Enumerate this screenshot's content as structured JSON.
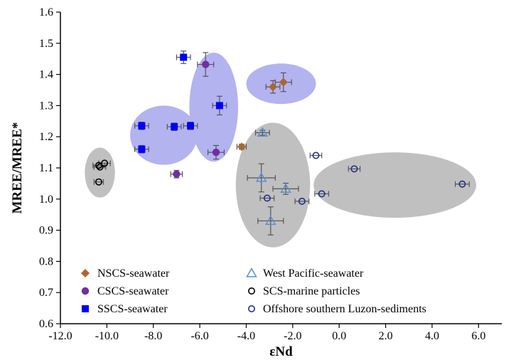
{
  "chart_data": {
    "type": "scatter",
    "title": "",
    "xlabel": "εNd",
    "ylabel": "MREE/MREE*",
    "xlim": [
      -12.0,
      7.0
    ],
    "ylim": [
      0.6,
      1.6
    ],
    "grid": false,
    "legend_placement": "bottom",
    "x_ticks": [
      -12.0,
      -10.0,
      -8.0,
      -6.0,
      -4.0,
      -2.0,
      0.0,
      2.0,
      4.0,
      6.0
    ],
    "x_tick_labels": [
      "-12.0",
      "-10.0",
      "-8.0",
      "-6.0",
      "-4.0",
      "-2.0",
      "0.0",
      "2.0",
      "4.0",
      "6.0"
    ],
    "y_ticks": [
      0.6,
      0.7,
      0.8,
      0.9,
      1.0,
      1.1,
      1.2,
      1.3,
      1.4,
      1.5,
      1.6
    ],
    "y_tick_labels": [
      "0.6",
      "0.7",
      "0.8",
      "0.9",
      "1.0",
      "1.1",
      "1.2",
      "1.3",
      "1.4",
      "1.5",
      "1.6"
    ],
    "groups": [
      {
        "cx": -10.3,
        "cy": 1.085,
        "rx": 0.65,
        "ry": 0.08,
        "color": "#c0c0c0"
      },
      {
        "cx": -7.55,
        "cy": 1.205,
        "rx": 1.45,
        "ry": 0.095,
        "color": "#b3b3f0"
      },
      {
        "cx": -5.4,
        "cy": 1.295,
        "rx": 1.05,
        "ry": 0.175,
        "color": "#b3b3f0"
      },
      {
        "cx": -2.5,
        "cy": 1.37,
        "rx": 1.5,
        "ry": 0.065,
        "color": "#b3b3f0"
      },
      {
        "cx": -2.85,
        "cy": 1.045,
        "rx": 1.6,
        "ry": 0.2,
        "color": "#c0c0c0"
      },
      {
        "cx": 2.4,
        "cy": 1.045,
        "rx": 3.5,
        "ry": 0.105,
        "color": "#c0c0c0"
      }
    ],
    "series": [
      {
        "name": "NSCS-seawater",
        "marker": "diamond",
        "color": "#a8682e",
        "points": [
          {
            "x": -2.4,
            "y": 1.375,
            "xerr": 0.35,
            "yerr": 0.03
          },
          {
            "x": -2.85,
            "y": 1.36,
            "xerr": 0.3,
            "yerr": 0.02
          },
          {
            "x": -4.2,
            "y": 1.168,
            "xerr": 0.2,
            "yerr": 0.008
          }
        ]
      },
      {
        "name": "CSCS-seawater",
        "marker": "circle",
        "color": "#7030a0",
        "points": [
          {
            "x": -5.75,
            "y": 1.432,
            "xerr": 0.35,
            "yerr": 0.038
          },
          {
            "x": -5.3,
            "y": 1.15,
            "xerr": 0.35,
            "yerr": 0.022
          },
          {
            "x": -7.0,
            "y": 1.08,
            "xerr": 0.25,
            "yerr": 0.012
          }
        ]
      },
      {
        "name": "SSCS-seawater",
        "marker": "square",
        "color": "#0000ff",
        "points": [
          {
            "x": -6.7,
            "y": 1.455,
            "xerr": 0.3,
            "yerr": 0.02
          },
          {
            "x": -5.15,
            "y": 1.3,
            "xerr": 0.3,
            "yerr": 0.03
          },
          {
            "x": -8.5,
            "y": 1.235,
            "xerr": 0.3,
            "yerr": 0.012
          },
          {
            "x": -7.1,
            "y": 1.232,
            "xerr": 0.3,
            "yerr": 0.012
          },
          {
            "x": -6.4,
            "y": 1.235,
            "xerr": 0.3,
            "yerr": 0.012
          },
          {
            "x": -8.5,
            "y": 1.16,
            "xerr": 0.3,
            "yerr": 0.012
          }
        ]
      },
      {
        "name": "West Pacific-seawater",
        "marker": "triangle-open",
        "color": "#5b8fd6",
        "points": [
          {
            "x": -3.3,
            "y": 1.213,
            "xerr": 0.3,
            "yerr": 0.008
          },
          {
            "x": -3.35,
            "y": 1.068,
            "xerr": 0.6,
            "yerr": 0.045
          },
          {
            "x": -2.3,
            "y": 1.033,
            "xerr": 0.55,
            "yerr": 0.018
          },
          {
            "x": -2.95,
            "y": 0.93,
            "xerr": 0.55,
            "yerr": 0.045
          }
        ]
      },
      {
        "name": "SCS-marine particles",
        "marker": "circle-open",
        "color": "#000000",
        "points": [
          {
            "x": -10.1,
            "y": 1.115,
            "xerr": 0.25,
            "yerr": 0.0
          },
          {
            "x": -10.3,
            "y": 1.103,
            "xerr": 0.25,
            "yerr": 0.0
          },
          {
            "x": -10.35,
            "y": 1.108,
            "xerr": 0.25,
            "yerr": 0.0
          },
          {
            "x": -10.35,
            "y": 1.055,
            "xerr": 0.2,
            "yerr": 0.0
          }
        ]
      },
      {
        "name": "Offshore southern Luzon-sediments",
        "marker": "circle-open",
        "color": "#1f2f8f",
        "points": [
          {
            "x": -1.0,
            "y": 1.14,
            "xerr": 0.25,
            "yerr": 0.0
          },
          {
            "x": 0.65,
            "y": 1.097,
            "xerr": 0.25,
            "yerr": 0.0
          },
          {
            "x": 5.3,
            "y": 1.048,
            "xerr": 0.3,
            "yerr": 0.0
          },
          {
            "x": -0.75,
            "y": 1.017,
            "xerr": 0.3,
            "yerr": 0.0
          },
          {
            "x": -3.1,
            "y": 1.003,
            "xerr": 0.3,
            "yerr": 0.0
          },
          {
            "x": -1.6,
            "y": 0.993,
            "xerr": 0.3,
            "yerr": 0.0
          }
        ]
      }
    ],
    "legend": [
      {
        "label": "NSCS-seawater",
        "marker": "diamond",
        "color": "#a8682e"
      },
      {
        "label": "CSCS-seawater",
        "marker": "circle",
        "color": "#7030a0"
      },
      {
        "label": "SSCS-seawater",
        "marker": "square",
        "color": "#0000ff"
      },
      {
        "label": "West Pacific-seawater",
        "marker": "triangle-open",
        "color": "#5b8fd6"
      },
      {
        "label": "SCS-marine particles",
        "marker": "circle-open",
        "color": "#000000"
      },
      {
        "label": "Offshore southern Luzon-sediments",
        "marker": "circle-open",
        "color": "#1f2f8f"
      }
    ],
    "colors": {
      "axis": "#000000",
      "errorbar": "#555555"
    }
  }
}
